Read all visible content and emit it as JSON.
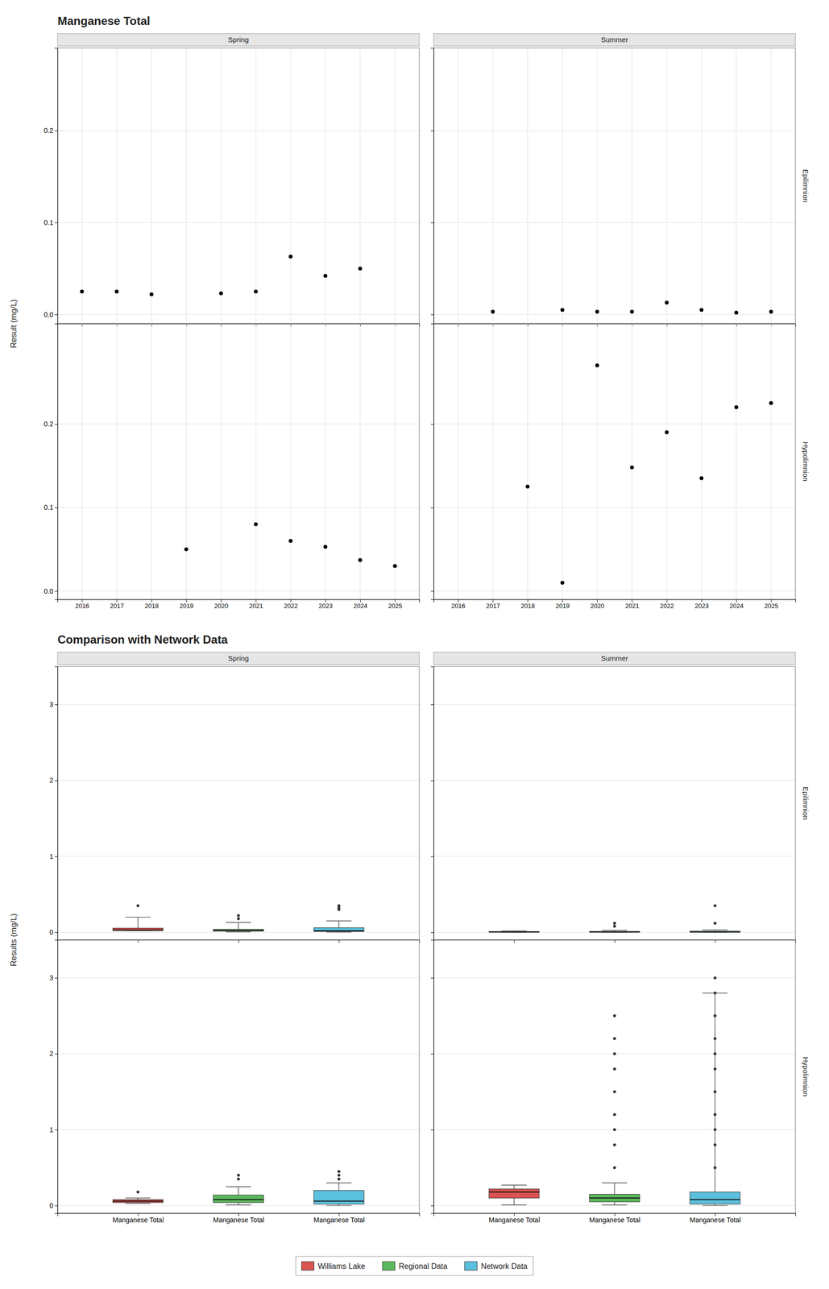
{
  "chart_data": [
    {
      "type": "scatter",
      "title": "Manganese Total",
      "ylabel": "Result (mg/L)",
      "color": "black",
      "grid": true,
      "columns": [
        "Spring",
        "Summer"
      ],
      "rows": [
        "Epilimnion",
        "Hypolimnion"
      ],
      "xlim": [
        2015.3,
        2025.7
      ],
      "xticks": [
        2016,
        2017,
        2018,
        2019,
        2020,
        2021,
        2022,
        2023,
        2024,
        2025
      ],
      "panels": [
        {
          "x": [
            2016,
            2017,
            2018,
            2020,
            2021,
            2022,
            2023,
            2024
          ],
          "values": [
            0.025,
            0.025,
            0.022,
            0.023,
            0.025,
            0.063,
            0.042,
            0.05
          ],
          "ylim": [
            -0.01,
            0.29
          ],
          "yticks": [
            {
              "value": 0.0,
              "label": "0.0"
            },
            0.1,
            0.2
          ]
        },
        {
          "x": [
            2017,
            2019,
            2020,
            2021,
            2022,
            2023,
            2024,
            2025
          ],
          "values": [
            0.003,
            0.005,
            0.003,
            0.003,
            0.013,
            0.005,
            0.002,
            0.003
          ],
          "ylim": [
            -0.01,
            0.29
          ],
          "yticks": [
            {
              "value": 0.0,
              "label": "0.0"
            },
            0.1,
            0.2
          ]
        },
        {
          "x": [
            2019,
            2021,
            2022,
            2023,
            2024,
            2025
          ],
          "values": [
            0.05,
            0.08,
            0.06,
            0.053,
            0.037,
            0.03
          ],
          "ylim": [
            -0.01,
            0.32
          ],
          "yticks": [
            {
              "value": 0.0,
              "label": "0.0"
            },
            0.1,
            0.2
          ]
        },
        {
          "x": [
            2018,
            2019,
            2020,
            2021,
            2022,
            2023,
            2024,
            2025
          ],
          "values": [
            0.125,
            0.01,
            0.27,
            0.148,
            0.19,
            0.135,
            0.22,
            0.225
          ],
          "ylim": [
            -0.01,
            0.32
          ],
          "yticks": [
            {
              "value": 0.0,
              "label": "0.0"
            },
            0.1,
            0.2
          ]
        }
      ]
    },
    {
      "type": "box",
      "title": "Comparison with Network Data",
      "ylabel": "Results (mg/L)",
      "grid": true,
      "legend": "bottom",
      "columns": [
        "Spring",
        "Summer"
      ],
      "rows": [
        "Epilimnion",
        "Hypolimnion"
      ],
      "series": [
        {
          "name": "Williams Lake",
          "color": "#d9534f"
        },
        {
          "name": "Regional Data",
          "color": "#5cb85c"
        },
        {
          "name": "Network Data",
          "color": "#5bc0de"
        }
      ],
      "panels": [
        {
          "categories": [
            null,
            null,
            null
          ],
          "ylim": [
            -0.1,
            3.5
          ],
          "yticks": [
            0,
            1,
            2,
            3
          ],
          "boxes": [
            {
              "median": 0.03,
              "q1": 0.022,
              "q3": 0.055,
              "whislo": 0.022,
              "whishi": 0.2,
              "fliers": [
                0.35
              ]
            },
            {
              "median": 0.025,
              "q1": 0.015,
              "q3": 0.04,
              "whislo": 0.005,
              "whishi": 0.13,
              "fliers": [
                0.18,
                0.22
              ]
            },
            {
              "median": 0.02,
              "q1": 0.01,
              "q3": 0.06,
              "whislo": 0.001,
              "whishi": 0.15,
              "fliers": [
                0.3,
                0.32,
                0.35
              ]
            }
          ]
        },
        {
          "categories": [
            null,
            null,
            null
          ],
          "ylim": [
            -0.1,
            3.5
          ],
          "yticks": [
            0,
            1,
            2,
            3
          ],
          "boxes": [
            {
              "median": 0.005,
              "q1": 0.002,
              "q3": 0.01,
              "whislo": 0.001,
              "whishi": 0.02,
              "fliers": []
            },
            {
              "median": 0.005,
              "q1": 0.002,
              "q3": 0.012,
              "whislo": 0.001,
              "whishi": 0.025,
              "fliers": [
                0.08,
                0.12
              ]
            },
            {
              "median": 0.005,
              "q1": 0.002,
              "q3": 0.015,
              "whislo": 0.001,
              "whishi": 0.03,
              "fliers": [
                0.12,
                0.35
              ]
            }
          ]
        },
        {
          "categories": [
            "Manganese Total",
            "Manganese Total",
            "Manganese Total"
          ],
          "ylim": [
            -0.1,
            3.5
          ],
          "yticks": [
            0,
            1,
            2,
            3
          ],
          "boxes": [
            {
              "median": 0.06,
              "q1": 0.04,
              "q3": 0.08,
              "whislo": 0.03,
              "whishi": 0.1,
              "fliers": [
                0.18
              ]
            },
            {
              "median": 0.08,
              "q1": 0.04,
              "q3": 0.14,
              "whislo": 0.01,
              "whishi": 0.25,
              "fliers": [
                0.35,
                0.4
              ]
            },
            {
              "median": 0.06,
              "q1": 0.02,
              "q3": 0.2,
              "whislo": 0.001,
              "whishi": 0.3,
              "fliers": [
                0.35,
                0.4,
                0.45
              ]
            }
          ]
        },
        {
          "categories": [
            "Manganese Total",
            "Manganese Total",
            "Manganese Total"
          ],
          "ylim": [
            -0.1,
            3.5
          ],
          "yticks": [
            0,
            1,
            2,
            3
          ],
          "boxes": [
            {
              "median": 0.18,
              "q1": 0.1,
              "q3": 0.22,
              "whislo": 0.01,
              "whishi": 0.27,
              "fliers": []
            },
            {
              "median": 0.1,
              "q1": 0.05,
              "q3": 0.15,
              "whislo": 0.01,
              "whishi": 0.3,
              "fliers": [
                0.5,
                0.8,
                1.0,
                1.2,
                1.5,
                1.8,
                2.0,
                2.2,
                2.5
              ]
            },
            {
              "median": 0.08,
              "q1": 0.02,
              "q3": 0.18,
              "whislo": 0.001,
              "whishi": 2.8,
              "fliers": [
                0.5,
                0.8,
                1.0,
                1.2,
                1.5,
                1.8,
                2.0,
                2.2,
                2.5,
                2.8,
                3.0
              ]
            }
          ]
        }
      ]
    }
  ]
}
